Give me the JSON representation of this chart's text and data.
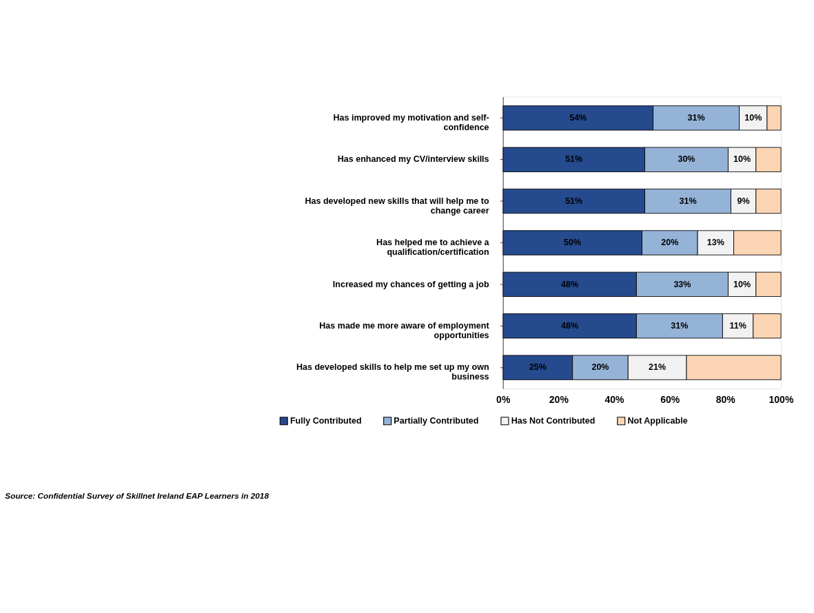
{
  "chart_data": {
    "type": "bar",
    "orientation": "horizontal",
    "stacked": true,
    "categories": [
      "Has improved my motivation and self-confidence",
      "Has enhanced my CV/interview skills",
      "Has developed new skills that will help me to change career",
      "Has helped me to achieve a qualification/certification",
      "Increased my chances of getting a job",
      "Has made me more aware of employment opportunities",
      "Has developed skills to help me set up my own business"
    ],
    "series": [
      {
        "name": "Fully Contributed",
        "color": "#264a8e",
        "values": [
          54,
          51,
          51,
          50,
          48,
          48,
          25
        ],
        "value_labels": [
          "54%",
          "51%",
          "51%",
          "50%",
          "48%",
          "48%",
          "25%"
        ]
      },
      {
        "name": "Partially Contributed",
        "color": "#95b3d7",
        "values": [
          31,
          30,
          31,
          20,
          33,
          31,
          20
        ],
        "value_labels": [
          "31%",
          "30%",
          "31%",
          "20%",
          "33%",
          "31%",
          "20%"
        ]
      },
      {
        "name": "Has Not Contributed",
        "color": "#f2f2f2",
        "values": [
          10,
          10,
          9,
          13,
          10,
          11,
          21
        ],
        "value_labels": [
          "10%",
          "10%",
          "9%",
          "13%",
          "10%",
          "11%",
          "21%"
        ]
      },
      {
        "name": "Not Applicable",
        "color": "#fcd5b4",
        "values": [
          5,
          9,
          9,
          17,
          9,
          10,
          34
        ]
      }
    ],
    "xlim": [
      0,
      100
    ],
    "xticks": [
      {
        "value": 0,
        "label": "0%"
      },
      {
        "value": 20,
        "label": "20%"
      },
      {
        "value": 40,
        "label": "40%"
      },
      {
        "value": 60,
        "label": "60%"
      },
      {
        "value": 80,
        "label": "80%"
      },
      {
        "value": 100,
        "label": "100%"
      }
    ],
    "grid": false,
    "legend": "bottom",
    "annotations": [
      "Source: Confidential Survey of Skillnet Ireland EAP Learners in 2018"
    ]
  }
}
